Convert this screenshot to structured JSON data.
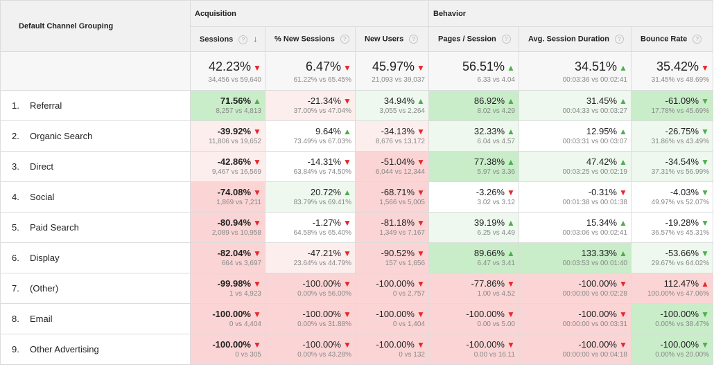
{
  "header": {
    "dimension": "Default Channel Grouping",
    "groups": [
      "Acquisition",
      "Behavior"
    ],
    "columns": [
      {
        "label": "Sessions",
        "sorted": true
      },
      {
        "label": "% New Sessions"
      },
      {
        "label": "New Users"
      },
      {
        "label": "Pages / Session"
      },
      {
        "label": "Avg. Session Duration"
      },
      {
        "label": "Bounce Rate"
      }
    ],
    "help_glyph": "?",
    "sort_glyph": "↓"
  },
  "totals": [
    {
      "value": "42.23%",
      "cmp": "34,456 vs 59,640",
      "dir": "down",
      "bg": "f7"
    },
    {
      "value": "6.47%",
      "cmp": "61.22% vs 65.45%",
      "dir": "down",
      "bg": "f7"
    },
    {
      "value": "45.97%",
      "cmp": "21,093 vs 39,037",
      "dir": "down",
      "bg": "f7"
    },
    {
      "value": "56.51%",
      "cmp": "6.33 vs 4.04",
      "dir": "up",
      "bg": "f7"
    },
    {
      "value": "34.51%",
      "cmp": "00:03:36 vs 00:02:41",
      "dir": "up",
      "bg": "f7"
    },
    {
      "value": "35.42%",
      "cmp": "31.45% vs 48.69%",
      "dir": "down",
      "bg": "f7"
    }
  ],
  "rows": [
    {
      "idx": "1.",
      "label": "Referral",
      "cells": [
        {
          "value": "71.56%",
          "cmp": "8,257 vs 4,813",
          "dir": "up",
          "bg": "g",
          "bold": true
        },
        {
          "value": "-21.34%",
          "cmp": "37.00% vs 47.04%",
          "dir": "down",
          "bg": "rl"
        },
        {
          "value": "34.94%",
          "cmp": "3,055 vs 2,264",
          "dir": "up",
          "bg": "gl"
        },
        {
          "value": "86.92%",
          "cmp": "8.02 vs 4.29",
          "dir": "up",
          "bg": "g"
        },
        {
          "value": "31.45%",
          "cmp": "00:04:33 vs 00:03:27",
          "dir": "up",
          "bg": "gl"
        },
        {
          "value": "-61.09%",
          "cmp": "17.78% vs 45.69%",
          "dir": "down-good",
          "bg": "g"
        }
      ]
    },
    {
      "idx": "2.",
      "label": "Organic Search",
      "cells": [
        {
          "value": "-39.92%",
          "cmp": "11,806 vs 19,652",
          "dir": "down",
          "bg": "rl",
          "bold": true
        },
        {
          "value": "9.64%",
          "cmp": "73.49% vs 67.03%",
          "dir": "up",
          "bg": "w"
        },
        {
          "value": "-34.13%",
          "cmp": "8,676 vs 13,172",
          "dir": "down",
          "bg": "rl"
        },
        {
          "value": "32.33%",
          "cmp": "6.04 vs 4.57",
          "dir": "up",
          "bg": "gl"
        },
        {
          "value": "12.95%",
          "cmp": "00:03:31 vs 00:03:07",
          "dir": "up",
          "bg": "w"
        },
        {
          "value": "-26.75%",
          "cmp": "31.86% vs 43.49%",
          "dir": "down-good",
          "bg": "gl"
        }
      ]
    },
    {
      "idx": "3.",
      "label": "Direct",
      "cells": [
        {
          "value": "-42.86%",
          "cmp": "9,467 vs 16,569",
          "dir": "down",
          "bg": "rl",
          "bold": true
        },
        {
          "value": "-14.31%",
          "cmp": "63.84% vs 74.50%",
          "dir": "down",
          "bg": "w"
        },
        {
          "value": "-51.04%",
          "cmp": "6,044 vs 12,344",
          "dir": "down",
          "bg": "r"
        },
        {
          "value": "77.38%",
          "cmp": "5.97 vs 3.36",
          "dir": "up",
          "bg": "g"
        },
        {
          "value": "47.42%",
          "cmp": "00:03:25 vs 00:02:19",
          "dir": "up",
          "bg": "gl"
        },
        {
          "value": "-34.54%",
          "cmp": "37.31% vs 56.99%",
          "dir": "down-good",
          "bg": "gl"
        }
      ]
    },
    {
      "idx": "4.",
      "label": "Social",
      "cells": [
        {
          "value": "-74.08%",
          "cmp": "1,869 vs 7,211",
          "dir": "down",
          "bg": "r",
          "bold": true
        },
        {
          "value": "20.72%",
          "cmp": "83.79% vs 69.41%",
          "dir": "up",
          "bg": "gl"
        },
        {
          "value": "-68.71%",
          "cmp": "1,566 vs 5,005",
          "dir": "down",
          "bg": "r"
        },
        {
          "value": "-3.26%",
          "cmp": "3.02 vs 3.12",
          "dir": "down",
          "bg": "w"
        },
        {
          "value": "-0.31%",
          "cmp": "00:01:38 vs 00:01:38",
          "dir": "down",
          "bg": "w"
        },
        {
          "value": "-4.03%",
          "cmp": "49.97% vs 52.07%",
          "dir": "down-good",
          "bg": "w"
        }
      ]
    },
    {
      "idx": "5.",
      "label": "Paid Search",
      "cells": [
        {
          "value": "-80.94%",
          "cmp": "2,089 vs 10,958",
          "dir": "down",
          "bg": "r",
          "bold": true
        },
        {
          "value": "-1.27%",
          "cmp": "64.58% vs 65.40%",
          "dir": "down",
          "bg": "w"
        },
        {
          "value": "-81.18%",
          "cmp": "1,349 vs 7,167",
          "dir": "down",
          "bg": "r"
        },
        {
          "value": "39.19%",
          "cmp": "6.25 vs 4.49",
          "dir": "up",
          "bg": "gl"
        },
        {
          "value": "15.34%",
          "cmp": "00:03:06 vs 00:02:41",
          "dir": "up",
          "bg": "w"
        },
        {
          "value": "-19.28%",
          "cmp": "36.57% vs 45.31%",
          "dir": "down-good",
          "bg": "w"
        }
      ]
    },
    {
      "idx": "6.",
      "label": "Display",
      "cells": [
        {
          "value": "-82.04%",
          "cmp": "664 vs 3,697",
          "dir": "down",
          "bg": "r",
          "bold": true
        },
        {
          "value": "-47.21%",
          "cmp": "23.64% vs 44.79%",
          "dir": "down",
          "bg": "rl"
        },
        {
          "value": "-90.52%",
          "cmp": "157 vs 1,656",
          "dir": "down",
          "bg": "r"
        },
        {
          "value": "89.66%",
          "cmp": "6.47 vs 3.41",
          "dir": "up",
          "bg": "g"
        },
        {
          "value": "133.33%",
          "cmp": "00:03:53 vs 00:01:40",
          "dir": "up",
          "bg": "g"
        },
        {
          "value": "-53.66%",
          "cmp": "29.67% vs 64.02%",
          "dir": "down-good",
          "bg": "gl"
        }
      ]
    },
    {
      "idx": "7.",
      "label": "(Other)",
      "cells": [
        {
          "value": "-99.98%",
          "cmp": "1 vs 4,923",
          "dir": "down",
          "bg": "r",
          "bold": true
        },
        {
          "value": "-100.00%",
          "cmp": "0.00% vs 56.00%",
          "dir": "down",
          "bg": "r"
        },
        {
          "value": "-100.00%",
          "cmp": "0 vs 2,757",
          "dir": "down",
          "bg": "r"
        },
        {
          "value": "-77.86%",
          "cmp": "1.00 vs 4.52",
          "dir": "down",
          "bg": "r"
        },
        {
          "value": "-100.00%",
          "cmp": "00:00:00 vs 00:02:28",
          "dir": "down",
          "bg": "r"
        },
        {
          "value": "112.47%",
          "cmp": "100.00% vs 47.06%",
          "dir": "up-bad",
          "bg": "r"
        }
      ]
    },
    {
      "idx": "8.",
      "label": "Email",
      "cells": [
        {
          "value": "-100.00%",
          "cmp": "0 vs 4,404",
          "dir": "down",
          "bg": "r",
          "bold": true
        },
        {
          "value": "-100.00%",
          "cmp": "0.00% vs 31.88%",
          "dir": "down",
          "bg": "r"
        },
        {
          "value": "-100.00%",
          "cmp": "0 vs 1,404",
          "dir": "down",
          "bg": "r"
        },
        {
          "value": "-100.00%",
          "cmp": "0.00 vs 5.00",
          "dir": "down",
          "bg": "r"
        },
        {
          "value": "-100.00%",
          "cmp": "00:00:00 vs 00:03:31",
          "dir": "down",
          "bg": "r"
        },
        {
          "value": "-100.00%",
          "cmp": "0.00% vs 38.47%",
          "dir": "down-good",
          "bg": "g"
        }
      ]
    },
    {
      "idx": "9.",
      "label": "Other Advertising",
      "cells": [
        {
          "value": "-100.00%",
          "cmp": "0 vs 305",
          "dir": "down",
          "bg": "r",
          "bold": true
        },
        {
          "value": "-100.00%",
          "cmp": "0.00% vs 43.28%",
          "dir": "down",
          "bg": "r"
        },
        {
          "value": "-100.00%",
          "cmp": "0 vs 132",
          "dir": "down",
          "bg": "r"
        },
        {
          "value": "-100.00%",
          "cmp": "0.00 vs 16.11",
          "dir": "down",
          "bg": "r"
        },
        {
          "value": "-100.00%",
          "cmp": "00:00:00 vs 00:04:18",
          "dir": "down",
          "bg": "r"
        },
        {
          "value": "-100.00%",
          "cmp": "0.00% vs 20.00%",
          "dir": "down-good",
          "bg": "g"
        }
      ]
    }
  ]
}
